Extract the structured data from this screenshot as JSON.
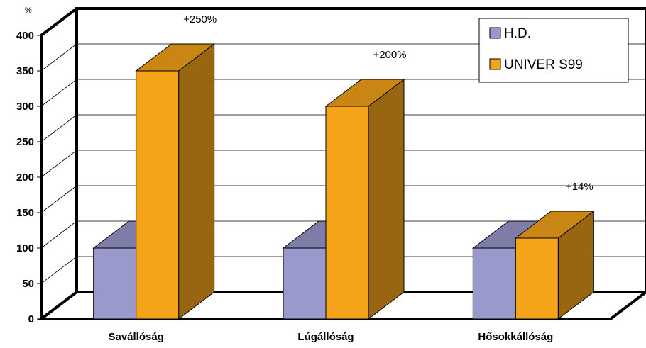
{
  "chart_data": {
    "type": "bar",
    "style": "3d-clustered",
    "y_unit": "%",
    "ylim": [
      0,
      400
    ],
    "y_ticks": [
      "0",
      "50",
      "100",
      "150",
      "200",
      "250",
      "300",
      "350",
      "400"
    ],
    "grid": true,
    "categories": [
      "Saválló­ság",
      "Lúgállóság",
      "Hősokkállóság"
    ],
    "series": [
      {
        "name": "H.D.",
        "values": [
          100,
          100,
          100
        ],
        "color": "#9999cc"
      },
      {
        "name": "UNIVER S99",
        "values": [
          350,
          300,
          114
        ],
        "color": "#f5a41a"
      }
    ],
    "annotations": [
      "+250%",
      "+200%",
      "+14%"
    ],
    "legend": {
      "position": "top-right"
    }
  }
}
